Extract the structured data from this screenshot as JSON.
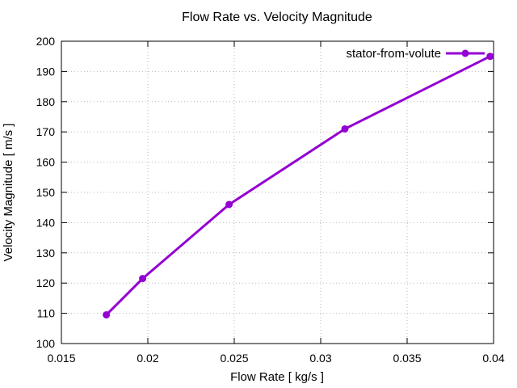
{
  "chart_data": {
    "type": "line",
    "title": "Flow Rate vs. Velocity Magnitude",
    "xlabel": "Flow Rate [ kg/s ]",
    "ylabel": "Velocity Magnitude [ m/s ]",
    "xlim": [
      0.015,
      0.04
    ],
    "ylim": [
      100,
      200
    ],
    "xticks": [
      0.015,
      0.02,
      0.025,
      0.03,
      0.035,
      0.04
    ],
    "xtick_labels": [
      "0.015",
      "0.02",
      "0.025",
      "0.03",
      "0.035",
      "0.04"
    ],
    "yticks": [
      100,
      110,
      120,
      130,
      140,
      150,
      160,
      170,
      180,
      190,
      200
    ],
    "ytick_labels": [
      "100",
      "110",
      "120",
      "130",
      "140",
      "150",
      "160",
      "170",
      "180",
      "190",
      "200"
    ],
    "grid": true,
    "legend_position": "top-right-inside",
    "series": [
      {
        "name": "stator-from-volute",
        "color": "#9400d3",
        "marker": "filled-circle",
        "x": [
          0.0176,
          0.0197,
          0.0247,
          0.0314,
          0.0398
        ],
        "y": [
          109.5,
          121.5,
          146,
          171,
          195
        ]
      }
    ],
    "colors": {
      "background": "#ffffff",
      "frame": "#000000",
      "grid": "#b8b8b8",
      "text": "#000000"
    }
  }
}
